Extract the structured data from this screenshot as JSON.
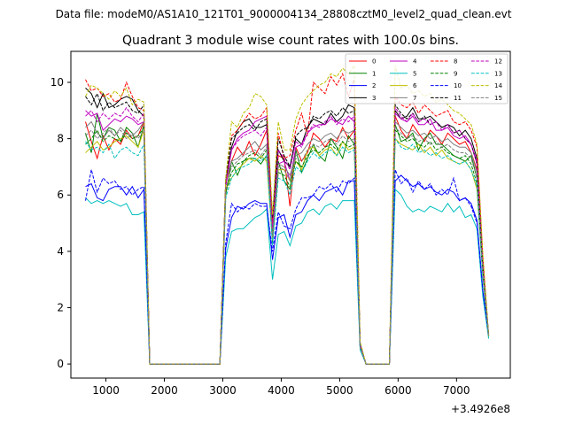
{
  "figure": {
    "suptitle": "Data file: modeM0/AS1A10_121T01_9000004134_28808cztM0_level2_quad_clean.evt",
    "offset_label": "+3.4926e8"
  },
  "chart_data": {
    "type": "line",
    "title": "Quadrant 3 module wise count rates with 100.0s bins.",
    "xlabel": "",
    "ylabel": "",
    "x_offset": 349260000,
    "xlim": [
      400,
      7920
    ],
    "ylim": [
      -0.5,
      11.1
    ],
    "x_ticks": [
      1000,
      2000,
      3000,
      4000,
      5000,
      6000,
      7000
    ],
    "x_tick_labels": [
      "1000",
      "2000",
      "3000",
      "4000",
      "5000",
      "6000",
      "7000"
    ],
    "y_ticks": [
      0,
      2,
      4,
      6,
      8,
      10
    ],
    "y_tick_labels": [
      "0",
      "2",
      "4",
      "6",
      "8",
      "10"
    ],
    "grid": false,
    "legend_position": "top-right",
    "legend_columns": 4,
    "x": [
      650,
      750,
      850,
      950,
      1050,
      1150,
      1250,
      1350,
      1450,
      1550,
      1650,
      1750,
      1850,
      1950,
      2050,
      2150,
      2250,
      2350,
      2450,
      2550,
      2650,
      2750,
      2850,
      2950,
      3050,
      3150,
      3250,
      3350,
      3450,
      3550,
      3650,
      3750,
      3850,
      3950,
      4050,
      4150,
      4250,
      4350,
      4450,
      4550,
      4650,
      4750,
      4850,
      4950,
      5050,
      5150,
      5250,
      5350,
      5450,
      5550,
      5650,
      5750,
      5850,
      5950,
      6050,
      6150,
      6250,
      6350,
      6450,
      6550,
      6650,
      6750,
      6850,
      6950,
      7050,
      7150,
      7250,
      7350,
      7450,
      7550
    ],
    "series": [
      {
        "name": "0",
        "color": "#ff0000",
        "dash": "solid",
        "values": [
          8.6,
          7.9,
          7.3,
          8.1,
          7.6,
          8.0,
          7.8,
          8.3,
          8.0,
          8.1,
          8.6,
          0,
          0,
          0,
          0,
          0,
          0,
          0,
          0,
          0,
          0,
          0,
          0,
          0,
          6.4,
          7.2,
          7.7,
          7.4,
          7.9,
          7.4,
          7.8,
          8.3,
          4.8,
          7.4,
          7.3,
          5.6,
          7.7,
          7.2,
          7.5,
          8.2,
          8.0,
          7.7,
          8.0,
          7.9,
          8.4,
          8.0,
          8.3,
          0.7,
          0,
          0,
          0,
          0,
          0,
          8.8,
          8.3,
          8.0,
          8.5,
          8.2,
          7.9,
          8.3,
          8.1,
          7.8,
          8.2,
          8.0,
          7.8,
          7.9,
          7.5,
          6.9,
          3.4,
          1.0
        ]
      },
      {
        "name": "1",
        "color": "#008000",
        "dash": "solid",
        "values": [
          8.2,
          7.5,
          8.9,
          8.0,
          8.4,
          8.3,
          7.9,
          8.4,
          8.2,
          7.7,
          8.5,
          0,
          0,
          0,
          0,
          0,
          0,
          0,
          0,
          0,
          0,
          0,
          0,
          0,
          6.0,
          7.2,
          6.7,
          7.2,
          7.3,
          7.3,
          7.1,
          7.4,
          4.3,
          7.2,
          6.5,
          6.2,
          7.6,
          6.8,
          7.3,
          7.8,
          7.4,
          7.2,
          8.0,
          7.7,
          7.3,
          8.1,
          7.8,
          0.6,
          0,
          0,
          0,
          0,
          0,
          8.5,
          7.9,
          8.0,
          8.2,
          7.6,
          8.0,
          8.2,
          7.8,
          7.8,
          7.6,
          7.4,
          7.3,
          7.2,
          7.4,
          6.6,
          3.3,
          1.0
        ]
      },
      {
        "name": "2",
        "color": "#0000ff",
        "dash": "solid",
        "values": [
          6.3,
          6.4,
          5.9,
          5.8,
          6.2,
          6.3,
          6.3,
          6.0,
          6.3,
          5.9,
          6.2,
          0,
          0,
          0,
          0,
          0,
          0,
          0,
          0,
          0,
          0,
          0,
          0,
          0,
          4.1,
          5.2,
          5.6,
          5.5,
          5.7,
          5.8,
          5.7,
          5.7,
          3.7,
          5.2,
          5.3,
          4.5,
          5.3,
          5.4,
          5.8,
          6.0,
          5.8,
          6.1,
          6.2,
          6.3,
          6.0,
          6.5,
          6.5,
          0.6,
          0,
          0,
          0,
          0,
          0,
          6.5,
          6.7,
          6.5,
          6.3,
          6.4,
          6.2,
          6.3,
          6.1,
          6.0,
          6.2,
          6.1,
          5.8,
          5.9,
          5.7,
          5.1,
          2.6,
          1.0
        ]
      },
      {
        "name": "3",
        "color": "#000000",
        "dash": "solid",
        "values": [
          9.8,
          9.6,
          9.1,
          9.6,
          9.1,
          9.2,
          9.4,
          9.5,
          9.4,
          9.0,
          8.8,
          0,
          0,
          0,
          0,
          0,
          0,
          0,
          0,
          0,
          0,
          0,
          0,
          0,
          6.5,
          7.7,
          8.3,
          8.6,
          8.7,
          8.4,
          8.4,
          8.5,
          5.0,
          7.6,
          7.2,
          7.0,
          8.0,
          7.8,
          8.4,
          8.7,
          8.6,
          8.5,
          8.9,
          8.6,
          8.8,
          9.2,
          9.1,
          0.7,
          0,
          0,
          0,
          0,
          0,
          9.0,
          8.7,
          8.8,
          9.1,
          8.7,
          8.7,
          8.8,
          8.6,
          8.4,
          8.5,
          8.4,
          8.1,
          8.3,
          8.0,
          7.3,
          3.6,
          1.0
        ]
      },
      {
        "name": "4",
        "color": "#bf00bf",
        "dash": "solid",
        "values": [
          9.0,
          8.8,
          8.9,
          8.3,
          8.5,
          8.7,
          8.6,
          8.8,
          8.7,
          8.5,
          8.6,
          0,
          0,
          0,
          0,
          0,
          0,
          0,
          0,
          0,
          0,
          0,
          0,
          0,
          6.3,
          7.6,
          8.0,
          8.2,
          8.3,
          8.6,
          8.7,
          8.8,
          4.9,
          7.1,
          7.2,
          6.5,
          7.7,
          7.8,
          8.2,
          8.4,
          8.5,
          8.5,
          8.7,
          8.6,
          8.5,
          8.8,
          8.6,
          0.7,
          0,
          0,
          0,
          0,
          0,
          8.9,
          8.7,
          8.6,
          8.8,
          8.5,
          8.5,
          8.7,
          8.3,
          8.3,
          8.4,
          8.1,
          8.0,
          8.1,
          7.8,
          7.2,
          3.5,
          1.0
        ]
      },
      {
        "name": "5",
        "color": "#00bfbf",
        "dash": "solid",
        "values": [
          5.9,
          5.7,
          5.8,
          5.7,
          5.8,
          5.7,
          5.6,
          5.7,
          5.3,
          5.3,
          5.4,
          0,
          0,
          0,
          0,
          0,
          0,
          0,
          0,
          0,
          0,
          0,
          0,
          0,
          3.8,
          4.7,
          4.8,
          4.8,
          5.0,
          5.2,
          5.3,
          5.5,
          3.0,
          4.6,
          4.7,
          4.2,
          4.9,
          5.0,
          5.4,
          5.5,
          5.3,
          5.6,
          5.7,
          5.5,
          5.8,
          5.8,
          5.8,
          0.5,
          0,
          0,
          0,
          0,
          0,
          6.2,
          6.0,
          5.6,
          5.4,
          5.5,
          5.4,
          5.6,
          5.5,
          5.4,
          5.7,
          5.4,
          5.6,
          5.2,
          5.3,
          4.8,
          2.4,
          0.9
        ]
      },
      {
        "name": "6",
        "color": "#bfbf00",
        "dash": "solid",
        "values": [
          7.5,
          7.7,
          7.9,
          7.6,
          7.7,
          7.9,
          8.0,
          8.1,
          7.9,
          7.7,
          8.3,
          0,
          0,
          0,
          0,
          0,
          0,
          0,
          0,
          0,
          0,
          0,
          0,
          0,
          6.2,
          6.6,
          6.9,
          7.1,
          7.3,
          7.2,
          7.4,
          7.2,
          4.4,
          6.9,
          6.9,
          6.5,
          7.2,
          6.9,
          7.6,
          7.7,
          7.4,
          7.6,
          7.7,
          7.4,
          7.9,
          7.6,
          7.7,
          0.6,
          0,
          0,
          0,
          0,
          0,
          8.0,
          7.8,
          7.7,
          7.6,
          7.8,
          7.5,
          7.7,
          7.4,
          7.6,
          7.3,
          7.2,
          7.1,
          7.2,
          6.9,
          6.2,
          3.1,
          1.0
        ]
      },
      {
        "name": "7",
        "color": "#7f7f7f",
        "dash": "solid",
        "values": [
          8.4,
          8.6,
          8.2,
          8.0,
          8.3,
          8.1,
          8.4,
          8.2,
          8.1,
          8.3,
          8.6,
          0,
          0,
          0,
          0,
          0,
          0,
          0,
          0,
          0,
          0,
          0,
          0,
          0,
          6.5,
          7.2,
          7.3,
          7.5,
          7.7,
          7.9,
          7.6,
          7.8,
          4.6,
          7.1,
          7.0,
          6.7,
          7.4,
          7.5,
          7.8,
          8.0,
          7.9,
          8.1,
          8.2,
          8.0,
          8.3,
          8.2,
          8.3,
          0.7,
          0,
          0,
          0,
          0,
          0,
          8.6,
          8.4,
          8.2,
          8.3,
          8.1,
          8.2,
          8.0,
          8.1,
          7.9,
          8.0,
          7.8,
          7.7,
          7.7,
          7.5,
          6.8,
          3.4,
          1.0
        ]
      },
      {
        "name": "8",
        "color": "#ff0000",
        "dash": "dashed",
        "values": [
          10.1,
          9.7,
          9.8,
          9.5,
          9.6,
          9.3,
          9.4,
          10.0,
          9.5,
          9.1,
          9.0,
          0,
          0,
          0,
          0,
          0,
          0,
          0,
          0,
          0,
          0,
          0,
          0,
          0,
          6.5,
          8.1,
          8.3,
          8.6,
          8.9,
          8.7,
          8.8,
          9.1,
          5.0,
          8.2,
          7.3,
          7.4,
          8.3,
          8.9,
          8.1,
          10.0,
          9.8,
          9.6,
          10.2,
          9.9,
          10.3,
          9.5,
          10.1,
          0.7,
          0,
          0,
          0,
          0,
          0,
          9.5,
          9.2,
          9.1,
          9.3,
          8.9,
          9.2,
          9.0,
          8.8,
          8.9,
          9.0,
          8.6,
          8.5,
          8.6,
          8.3,
          7.7,
          3.8,
          1.0
        ]
      },
      {
        "name": "9",
        "color": "#008000",
        "dash": "dashed",
        "values": [
          7.8,
          8.0,
          8.3,
          7.9,
          8.1,
          8.0,
          7.9,
          8.2,
          8.0,
          8.1,
          8.4,
          0,
          0,
          0,
          0,
          0,
          0,
          0,
          0,
          0,
          0,
          0,
          0,
          0,
          6.1,
          6.8,
          7.1,
          7.2,
          7.4,
          7.5,
          7.3,
          7.6,
          4.5,
          6.8,
          6.7,
          6.3,
          7.2,
          7.0,
          7.4,
          7.6,
          7.5,
          7.7,
          7.8,
          7.6,
          7.9,
          7.7,
          7.8,
          0.6,
          0,
          0,
          0,
          0,
          0,
          8.3,
          8.1,
          7.9,
          8.0,
          7.8,
          7.7,
          7.9,
          7.6,
          7.7,
          7.5,
          7.4,
          7.3,
          7.4,
          7.1,
          6.4,
          3.2,
          1.0
        ]
      },
      {
        "name": "10",
        "color": "#0000ff",
        "dash": "dashed",
        "values": [
          5.8,
          6.9,
          6.1,
          6.6,
          6.4,
          6.5,
          6.2,
          6.3,
          6.0,
          6.2,
          6.3,
          0,
          0,
          0,
          0,
          0,
          0,
          0,
          0,
          0,
          0,
          0,
          0,
          0,
          4.3,
          5.7,
          5.4,
          5.6,
          5.5,
          5.7,
          5.6,
          5.6,
          4.0,
          5.4,
          4.9,
          4.8,
          5.5,
          5.9,
          5.9,
          6.0,
          6.3,
          6.2,
          6.4,
          6.1,
          6.5,
          6.4,
          6.6,
          0.6,
          0,
          0,
          0,
          0,
          0,
          6.9,
          6.4,
          6.6,
          6.1,
          6.5,
          6.2,
          6.4,
          6.0,
          6.2,
          6.0,
          6.6,
          5.8,
          5.9,
          5.6,
          5.0,
          2.6,
          1.0
        ]
      },
      {
        "name": "11",
        "color": "#000000",
        "dash": "dashed",
        "values": [
          9.5,
          9.2,
          9.6,
          9.0,
          9.3,
          9.1,
          9.2,
          9.3,
          9.0,
          8.9,
          9.2,
          0,
          0,
          0,
          0,
          0,
          0,
          0,
          0,
          0,
          0,
          0,
          0,
          0,
          6.6,
          8.0,
          8.2,
          8.4,
          8.5,
          8.3,
          8.6,
          8.7,
          5.2,
          8.0,
          7.4,
          7.0,
          8.1,
          8.3,
          8.4,
          8.8,
          8.7,
          8.9,
          9.0,
          8.8,
          9.1,
          8.9,
          9.0,
          0.7,
          0,
          0,
          0,
          0,
          0,
          9.2,
          8.9,
          8.7,
          8.9,
          8.6,
          8.8,
          8.5,
          8.6,
          8.4,
          8.5,
          8.2,
          8.3,
          8.0,
          7.8,
          7.1,
          3.5,
          1.0
        ]
      },
      {
        "name": "12",
        "color": "#bf00bf",
        "dash": "dashed",
        "values": [
          8.8,
          9.0,
          8.6,
          8.9,
          8.7,
          8.9,
          8.8,
          9.1,
          8.8,
          8.6,
          8.9,
          0,
          0,
          0,
          0,
          0,
          0,
          0,
          0,
          0,
          0,
          0,
          0,
          0,
          6.4,
          7.6,
          7.9,
          8.1,
          8.2,
          8.3,
          8.1,
          8.4,
          4.8,
          7.6,
          7.3,
          6.9,
          7.9,
          7.7,
          8.2,
          8.5,
          8.4,
          8.6,
          8.8,
          8.5,
          8.7,
          8.6,
          8.8,
          0.7,
          0,
          0,
          0,
          0,
          0,
          9.1,
          8.8,
          8.6,
          8.9,
          8.6,
          8.7,
          8.5,
          8.6,
          8.3,
          8.5,
          8.2,
          8.3,
          8.0,
          7.8,
          7.1,
          3.5,
          1.0
        ]
      },
      {
        "name": "13",
        "color": "#00bfbf",
        "dash": "dashed",
        "values": [
          7.9,
          7.6,
          7.7,
          7.5,
          7.8,
          7.3,
          7.6,
          7.7,
          7.5,
          7.4,
          7.8,
          0,
          0,
          0,
          0,
          0,
          0,
          0,
          0,
          0,
          0,
          0,
          0,
          0,
          5.9,
          6.6,
          6.9,
          7.0,
          7.1,
          7.3,
          7.2,
          7.4,
          4.2,
          6.6,
          6.5,
          6.0,
          7.0,
          6.8,
          7.2,
          7.5,
          7.3,
          7.5,
          7.6,
          7.4,
          7.7,
          7.5,
          7.6,
          0.6,
          0,
          0,
          0,
          0,
          0,
          8.0,
          7.7,
          7.6,
          7.8,
          7.5,
          7.6,
          7.4,
          7.5,
          7.3,
          7.4,
          7.2,
          7.1,
          7.2,
          6.9,
          6.3,
          3.1,
          1.0
        ]
      },
      {
        "name": "14",
        "color": "#bfbf00",
        "dash": "dashed",
        "values": [
          9.5,
          9.9,
          9.8,
          9.6,
          9.4,
          9.7,
          9.5,
          9.8,
          9.2,
          9.4,
          9.3,
          0,
          0,
          0,
          0,
          0,
          0,
          0,
          0,
          0,
          0,
          0,
          0,
          0,
          6.6,
          8.6,
          8.4,
          8.9,
          9.1,
          9.6,
          9.5,
          9.2,
          5.3,
          8.6,
          7.6,
          7.6,
          8.7,
          9.2,
          9.5,
          9.7,
          9.9,
          10.0,
          10.3,
          10.2,
          10.5,
          10.3,
          10.6,
          0.8,
          0,
          0,
          0,
          0,
          0,
          10.6,
          9.8,
          9.9,
          9.6,
          9.7,
          9.5,
          9.6,
          9.3,
          9.4,
          9.2,
          9.0,
          8.9,
          8.7,
          8.5,
          7.8,
          3.9,
          1.0
        ]
      },
      {
        "name": "15",
        "color": "#7f7f7f",
        "dash": "dashed",
        "values": [
          8.1,
          8.3,
          8.0,
          8.2,
          8.4,
          8.1,
          8.3,
          8.0,
          8.2,
          8.0,
          8.3,
          0,
          0,
          0,
          0,
          0,
          0,
          0,
          0,
          0,
          0,
          0,
          0,
          0,
          6.2,
          7.0,
          7.2,
          7.4,
          7.5,
          7.6,
          7.4,
          7.7,
          4.5,
          7.0,
          6.9,
          6.5,
          7.3,
          7.2,
          7.6,
          7.8,
          7.7,
          7.9,
          8.0,
          7.8,
          8.1,
          7.9,
          8.0,
          0.6,
          0,
          0,
          0,
          0,
          0,
          8.4,
          8.2,
          8.0,
          8.1,
          7.9,
          8.0,
          7.8,
          7.9,
          7.7,
          7.8,
          7.6,
          7.5,
          7.5,
          7.3,
          6.6,
          3.3,
          1.0
        ]
      }
    ]
  }
}
